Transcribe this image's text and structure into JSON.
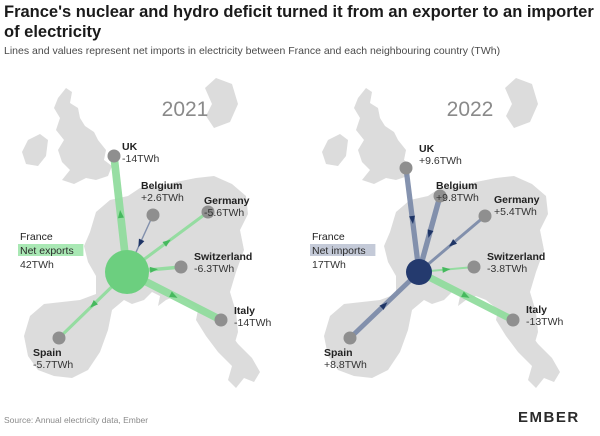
{
  "title": "France's nuclear and hydro deficit turned it from an exporter to an importer of electricity",
  "subtitle": "Lines and values represent net imports in electricity between France and each neighbouring country (TWh)",
  "source": "Source: Annual electricity data, Ember",
  "logo": "EMBER",
  "colors": {
    "map": "#dcdcdc",
    "node": "#8f8f8f",
    "export_green": "#6ccf7f",
    "export_line": "#8fdc9c",
    "import_navy": "#243a6e",
    "import_line": "#7b8aa9"
  },
  "panels": [
    {
      "year": "2021",
      "france": {
        "name": "France",
        "status": "Net exports",
        "value": "42TWh",
        "type": "export"
      },
      "neighbours": [
        {
          "id": "uk",
          "name": "UK",
          "value": "-14TWh",
          "direction": "export"
        },
        {
          "id": "belgium",
          "name": "Belgium",
          "value": "+2.6TWh",
          "direction": "import"
        },
        {
          "id": "germany",
          "name": "Germany",
          "value": "-5.6TWh",
          "direction": "export"
        },
        {
          "id": "switzerland",
          "name": "Switzerland",
          "value": "-6.3TWh",
          "direction": "export"
        },
        {
          "id": "italy",
          "name": "Italy",
          "value": "-14TWh",
          "direction": "export"
        },
        {
          "id": "spain",
          "name": "Spain",
          "value": "-5.7TWh",
          "direction": "export"
        }
      ]
    },
    {
      "year": "2022",
      "france": {
        "name": "France",
        "status": "Net imports",
        "value": "17TWh",
        "type": "import"
      },
      "neighbours": [
        {
          "id": "uk",
          "name": "UK",
          "value": "+9.6TWh",
          "direction": "import"
        },
        {
          "id": "belgium",
          "name": "Belgium",
          "value": "+9.8TWh",
          "direction": "import"
        },
        {
          "id": "germany",
          "name": "Germany",
          "value": "+5.4TWh",
          "direction": "import"
        },
        {
          "id": "switzerland",
          "name": "Switzerland",
          "value": "-3.8TWh",
          "direction": "export"
        },
        {
          "id": "italy",
          "name": "Italy",
          "value": "-13TWh",
          "direction": "export"
        },
        {
          "id": "spain",
          "name": "Spain",
          "value": "+8.8TWh",
          "direction": "import"
        }
      ]
    }
  ]
}
